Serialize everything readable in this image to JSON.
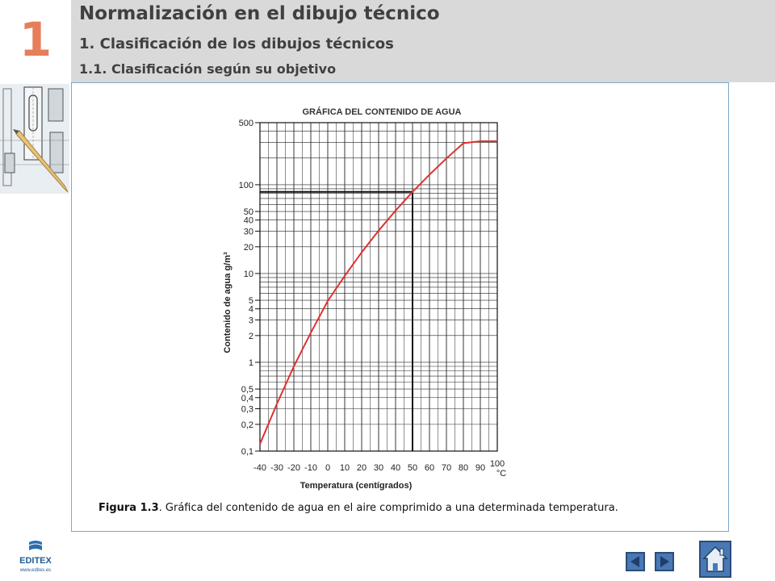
{
  "header": {
    "chapter_number": "1",
    "title": "Normalización en el dibujo técnico",
    "subtitle": "1. Clasificación de los dibujos técnicos",
    "subsubtitle": "1.1. Clasificación según su objetivo"
  },
  "colors": {
    "header_bg": "#d9d9d9",
    "chapter_number": "#e67e5b",
    "curve": "#e03030",
    "nav_button": "#4a78b4",
    "box_border": "#7fa7c9"
  },
  "chart_data": {
    "type": "line",
    "title": "GRÁFICA DEL CONTENIDO DE AGUA",
    "xlabel": "Temperatura (centígrados)",
    "ylabel": "Contenido de agua g/m³",
    "x_unit": "°C",
    "xlim": [
      -40,
      100
    ],
    "y_scale": "log",
    "ylim": [
      0.1,
      500
    ],
    "x_ticks": [
      "-40",
      "-30",
      "-20",
      "-10",
      "0",
      "10",
      "20",
      "30",
      "40",
      "50",
      "60",
      "70",
      "80",
      "90",
      "100"
    ],
    "y_ticks": [
      "0,1",
      "0,2",
      "0,3",
      "0,4",
      "0,5",
      "1",
      "2",
      "3",
      "4",
      "5",
      "10",
      "20",
      "30",
      "40",
      "50",
      "100",
      "500"
    ],
    "grid": true,
    "series": [
      {
        "x": [
          -40,
          -30,
          -20,
          -10,
          0,
          10,
          20,
          30,
          40,
          50,
          60,
          70,
          80,
          90,
          100
        ],
        "y": [
          0.12,
          0.34,
          0.9,
          2.15,
          4.9,
          9.4,
          17.3,
          30.4,
          51.1,
          83,
          130,
          198,
          293,
          424,
          598
        ]
      }
    ],
    "annotation": {
      "x": 50,
      "y": 83
    }
  },
  "caption": {
    "label": "Figura 1.3",
    "text": ". Gráfica del contenido de agua en el aire comprimido a una determinada temperatura."
  },
  "footer": {
    "logo_text": "EDITEX",
    "logo_url": "www.editex.es",
    "prev_icon": "triangle-left-icon",
    "next_icon": "triangle-right-icon",
    "home_icon": "house-icon"
  }
}
